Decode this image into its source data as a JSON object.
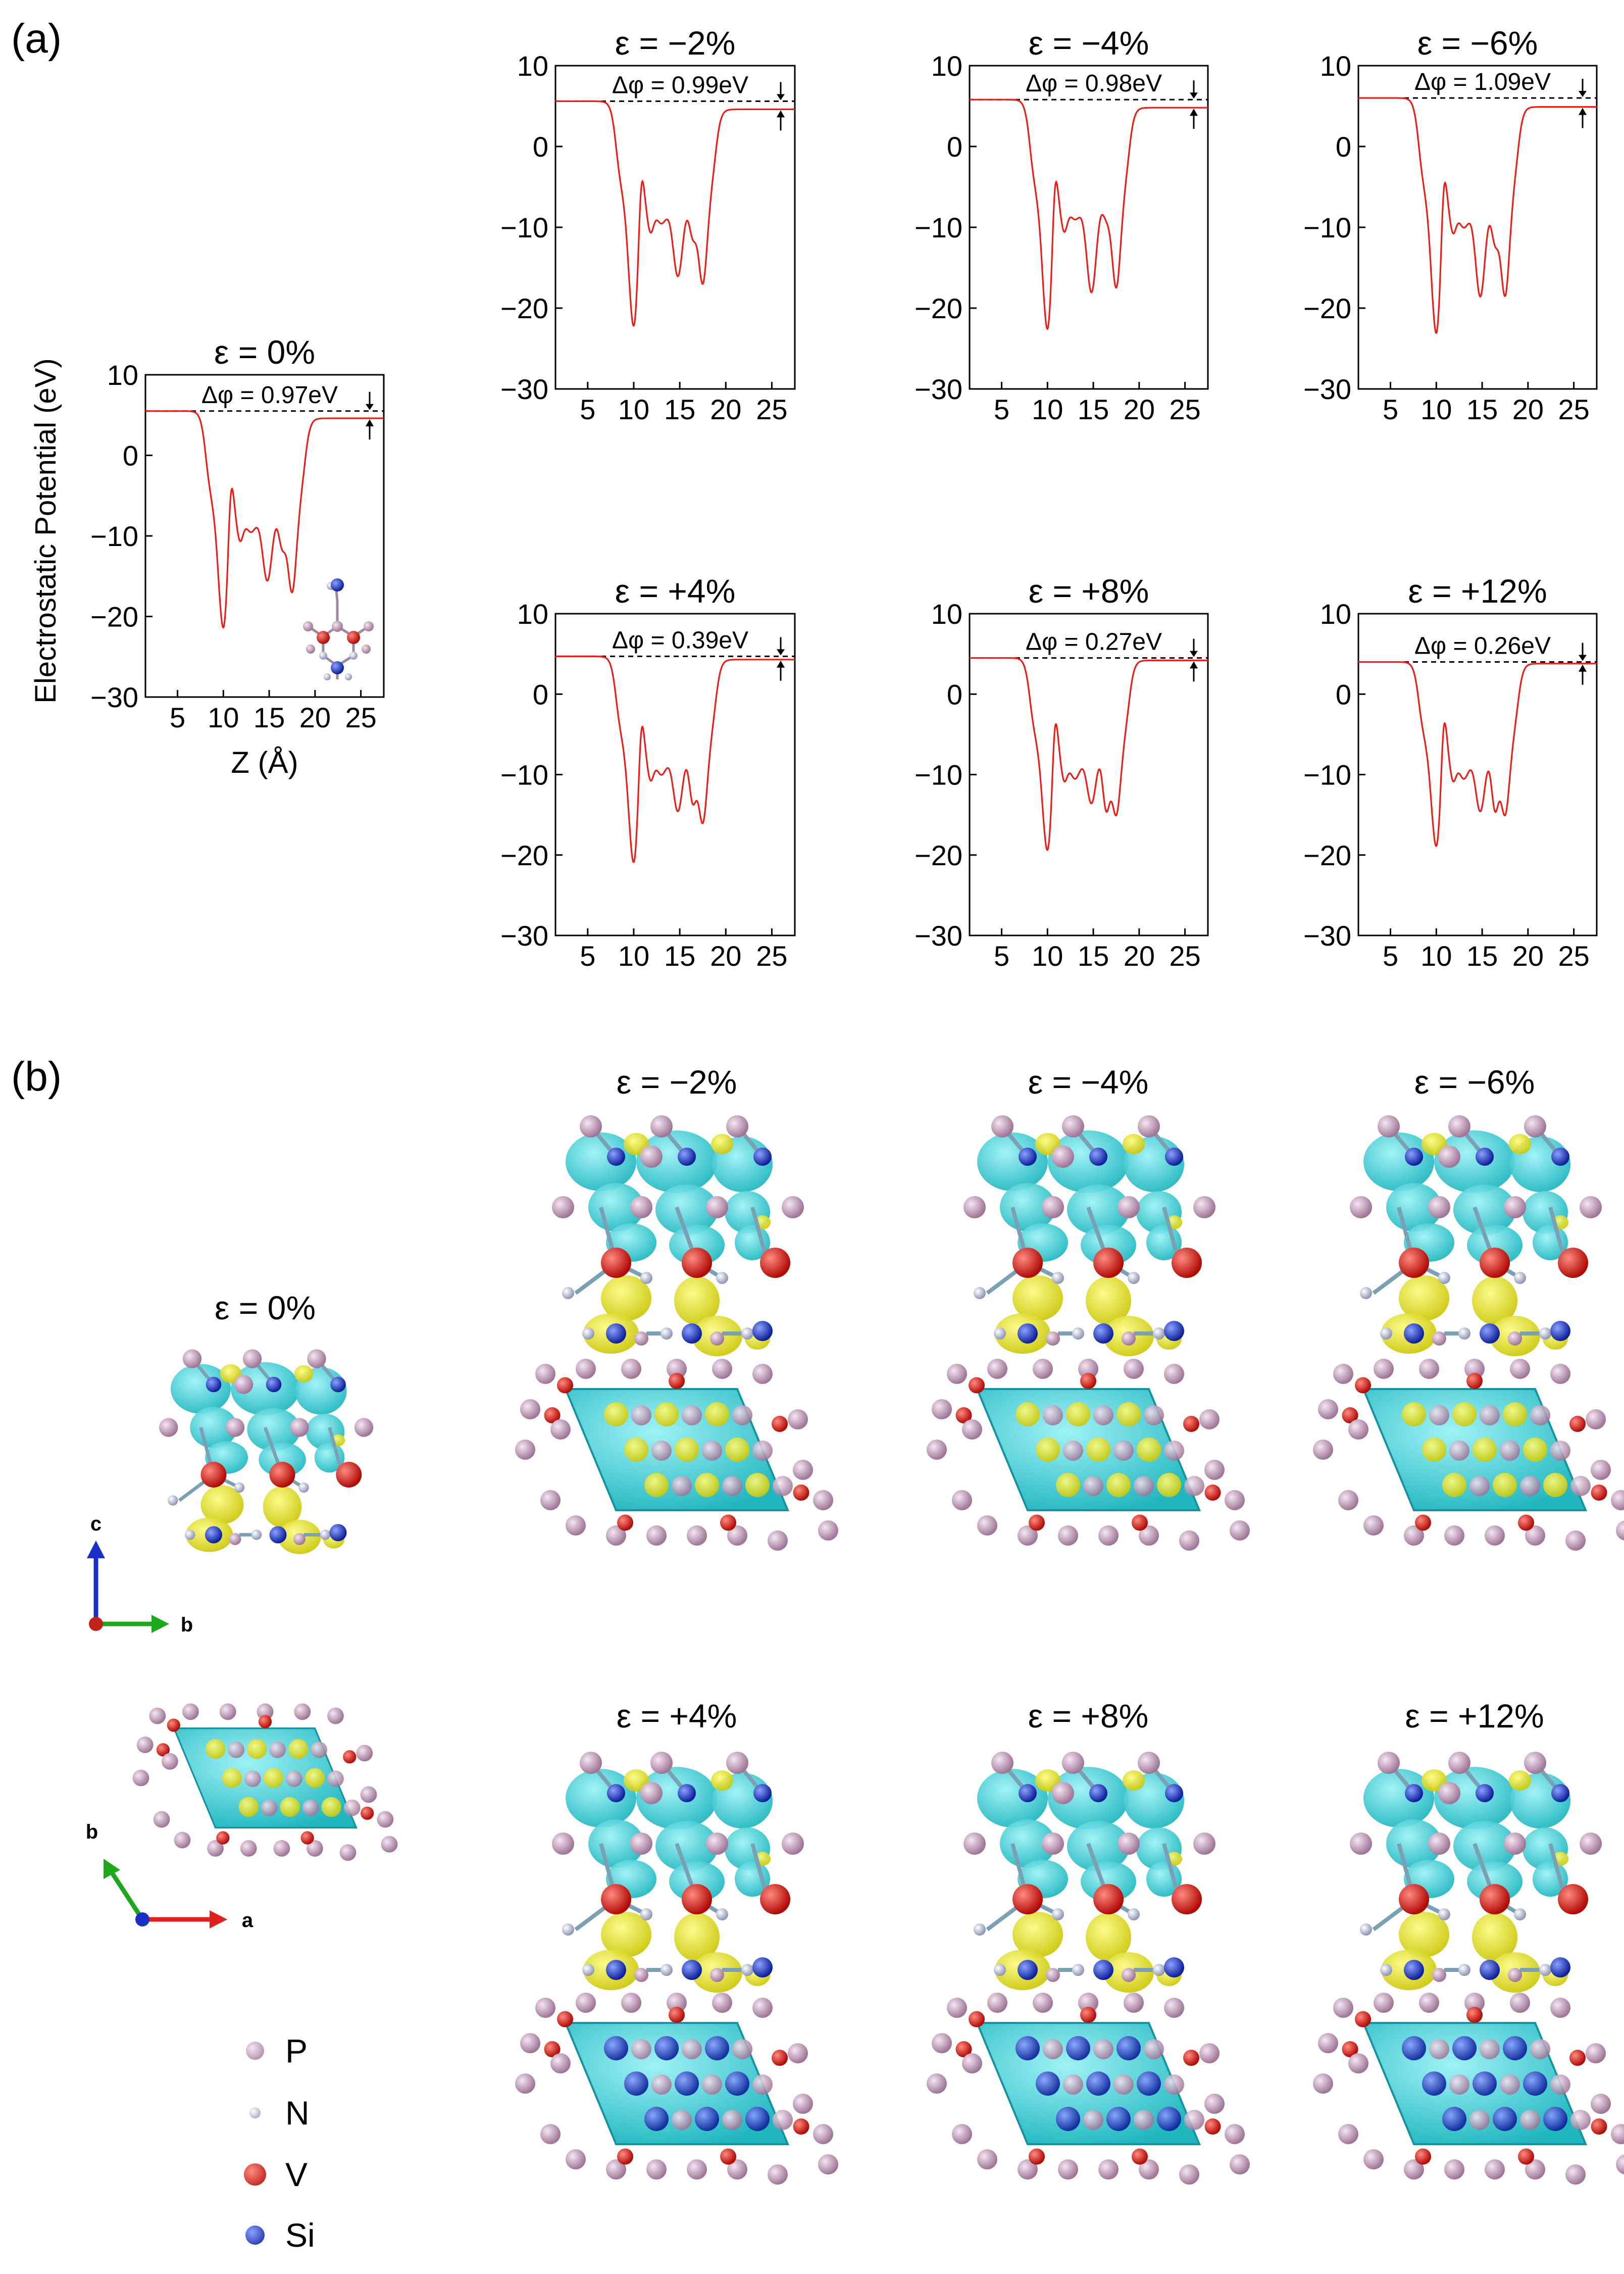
{
  "panels": {
    "a": "(a)",
    "b": "(b)"
  },
  "chart_data": [
    {
      "id": "eps0",
      "type": "line",
      "title": "ε = 0%",
      "delta_label": "Δφ = 0.97eV",
      "ylabel": "Electrostatic Potential (eV)",
      "xlabel": "Z (Å)",
      "xlim": [
        1.5,
        27.5
      ],
      "ylim": [
        -30,
        10
      ],
      "xticks": [
        5,
        10,
        15,
        20,
        25
      ],
      "yticks": [
        10,
        0,
        -10,
        -20,
        -30
      ],
      "vacuum_left": 5.5,
      "vacuum_right": 4.6,
      "minima": [
        -21.5,
        -5.5,
        -15.5,
        -11,
        -17
      ]
    },
    {
      "id": "eps-2",
      "type": "line",
      "title": "ε = −2%",
      "delta_label": "Δφ = 0.99eV",
      "ylabel": "",
      "xlabel": "",
      "xlim": [
        1.5,
        27.5
      ],
      "ylim": [
        -30,
        10
      ],
      "xticks": [
        5,
        10,
        15,
        20,
        25
      ],
      "yticks": [
        10,
        0,
        -10,
        -20,
        -30
      ],
      "vacuum_left": 5.6,
      "vacuum_right": 4.6,
      "minima": [
        -22.3,
        -5.5,
        -16,
        -10.8,
        -17
      ]
    },
    {
      "id": "eps-4",
      "type": "line",
      "title": "ε = −4%",
      "delta_label": "Δφ = 0.98eV",
      "ylabel": "",
      "xlabel": "",
      "xlim": [
        1.5,
        27.5
      ],
      "ylim": [
        -30,
        10
      ],
      "xticks": [
        5,
        10,
        15,
        20,
        25
      ],
      "yticks": [
        10,
        0,
        -10,
        -20,
        -30
      ],
      "vacuum_left": 5.8,
      "vacuum_right": 4.8,
      "minima": [
        -22.7,
        -5,
        -18,
        -8.5,
        -17.5
      ]
    },
    {
      "id": "eps-6",
      "type": "line",
      "title": "ε = −6%",
      "delta_label": "Δφ = 1.09eV",
      "ylabel": "",
      "xlabel": "",
      "xlim": [
        1.5,
        27.5
      ],
      "ylim": [
        -30,
        10
      ],
      "xticks": [
        5,
        10,
        15,
        20,
        25
      ],
      "yticks": [
        10,
        0,
        -10,
        -20,
        -30
      ],
      "vacuum_left": 6,
      "vacuum_right": 4.9,
      "minima": [
        -23.2,
        -6,
        -18.5,
        -11.5,
        -18.5
      ]
    },
    {
      "id": "eps+4",
      "type": "line",
      "title": "ε = +4%",
      "delta_label": "Δφ = 0.39eV",
      "ylabel": "",
      "xlabel": "",
      "xlim": [
        1.5,
        27.5
      ],
      "ylim": [
        -30,
        10
      ],
      "xticks": [
        5,
        10,
        15,
        20,
        25
      ],
      "yticks": [
        10,
        0,
        -10,
        -20,
        -30
      ],
      "vacuum_left": 4.7,
      "vacuum_right": 4.3,
      "minima": [
        -21,
        -6,
        -14.5,
        -13,
        -16
      ]
    },
    {
      "id": "eps+8",
      "type": "line",
      "title": "ε = +8%",
      "delta_label": "Δφ = 0.27eV",
      "ylabel": "",
      "xlabel": "",
      "xlim": [
        1.5,
        27.5
      ],
      "ylim": [
        -30,
        10
      ],
      "xticks": [
        5,
        10,
        15,
        20,
        25
      ],
      "yticks": [
        10,
        0,
        -10,
        -20,
        -30
      ],
      "vacuum_left": 4.5,
      "vacuum_right": 4.2,
      "minima": [
        -19.5,
        -6.5,
        -13.5,
        -14,
        -15
      ]
    },
    {
      "id": "eps+12",
      "type": "line",
      "title": "ε = +12%",
      "delta_label": "Δφ = 0.26eV",
      "ylabel": "",
      "xlabel": "",
      "xlim": [
        1.5,
        27.5
      ],
      "ylim": [
        -30,
        10
      ],
      "xticks": [
        5,
        10,
        15,
        20,
        25
      ],
      "yticks": [
        10,
        0,
        -10,
        -20,
        -30
      ],
      "vacuum_left": 4,
      "vacuum_right": 3.8,
      "minima": [
        -19,
        -6.5,
        -14.5,
        -14,
        -15
      ]
    }
  ],
  "structures": [
    {
      "id": "s0",
      "title": "ε = 0%"
    },
    {
      "id": "s-2",
      "title": "ε = −2%"
    },
    {
      "id": "s-4",
      "title": "ε = −4%"
    },
    {
      "id": "s-6",
      "title": "ε = −6%"
    },
    {
      "id": "s+4",
      "title": "ε = +4%"
    },
    {
      "id": "s+8",
      "title": "ε = +8%"
    },
    {
      "id": "s+12",
      "title": "ε = +12%"
    }
  ],
  "axes_labels": {
    "side_c": "c",
    "side_b": "b",
    "top_b": "b",
    "top_a": "a"
  },
  "legend": [
    {
      "label": "P",
      "color": "#c9a3c4"
    },
    {
      "label": "N",
      "color": "#c6cbe0"
    },
    {
      "label": "V",
      "color": "#e02218"
    },
    {
      "label": "Si",
      "color": "#2244cc"
    }
  ],
  "colors": {
    "curve": "#e8201a",
    "isosurface_yellow": "#f2f000",
    "isosurface_cyan": "#2ed6de"
  }
}
